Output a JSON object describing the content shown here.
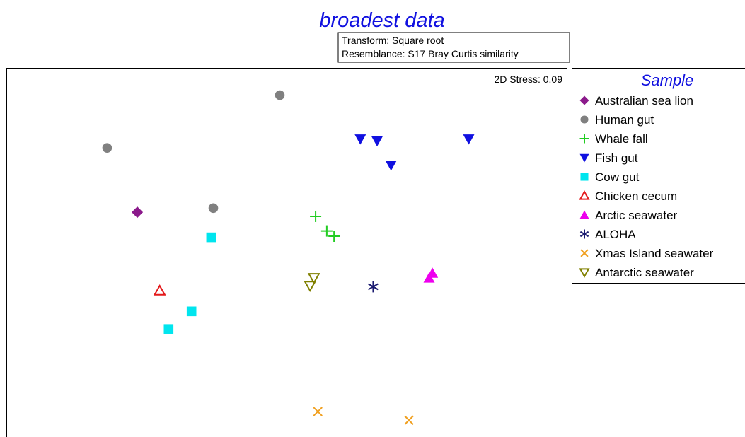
{
  "chart_data": {
    "type": "scatter",
    "title": "broadest data",
    "title_color": "#1010e0",
    "info_box": {
      "transform": "Transform: Square root",
      "resemblance": "Resemblance: S17 Bray Curtis similarity"
    },
    "stress": "2D Stress: 0.09",
    "xlabel": "",
    "ylabel": "",
    "xlim": [
      0,
      100
    ],
    "ylim": [
      0,
      100
    ],
    "grid": false,
    "legend": {
      "title": "Sample",
      "title_color": "#1010e0",
      "placement": "right"
    },
    "series": [
      {
        "name": "Australian sea lion",
        "marker": "diamond",
        "color": "#8b1a8b",
        "points": [
          [
            23.3,
            61.6
          ]
        ]
      },
      {
        "name": "Human gut",
        "marker": "circle",
        "color": "#808080",
        "points": [
          [
            48.8,
            92.9
          ],
          [
            17.9,
            78.8
          ],
          [
            36.9,
            62.7
          ]
        ]
      },
      {
        "name": "Whale fall",
        "marker": "plus",
        "color": "#22cc22",
        "points": [
          [
            55.2,
            60.5
          ],
          [
            57.2,
            56.6
          ],
          [
            58.5,
            55.2
          ]
        ]
      },
      {
        "name": "Fish gut",
        "marker": "triangle-down",
        "color": "#1010e0",
        "points": [
          [
            63.2,
            81.2
          ],
          [
            66.2,
            80.7
          ],
          [
            68.7,
            74.2
          ],
          [
            82.6,
            81.2
          ]
        ]
      },
      {
        "name": "Cow gut",
        "marker": "square",
        "color": "#00e5ee",
        "points": [
          [
            36.5,
            54.9
          ],
          [
            33.0,
            35.1
          ],
          [
            28.9,
            30.4
          ]
        ]
      },
      {
        "name": "Chicken cecum",
        "marker": "triangle-open",
        "color": "#e41a1c",
        "points": [
          [
            27.3,
            40.6
          ]
        ]
      },
      {
        "name": "Arctic seawater",
        "marker": "triangle",
        "color": "#ee00ee",
        "points": [
          [
            76.1,
            45.3
          ],
          [
            75.5,
            44.0
          ]
        ]
      },
      {
        "name": "ALOHA",
        "marker": "asterisk",
        "color": "#1a1a70",
        "points": [
          [
            65.5,
            41.7
          ]
        ]
      },
      {
        "name": "Xmas Island seawater",
        "marker": "x",
        "color": "#f0a020",
        "points": [
          [
            55.6,
            8.3
          ],
          [
            71.9,
            6.0
          ]
        ]
      },
      {
        "name": "Antarctic seawater",
        "marker": "triangle-down-open",
        "color": "#808000",
        "points": [
          [
            54.9,
            44.1
          ],
          [
            54.2,
            42.0
          ]
        ]
      }
    ]
  }
}
